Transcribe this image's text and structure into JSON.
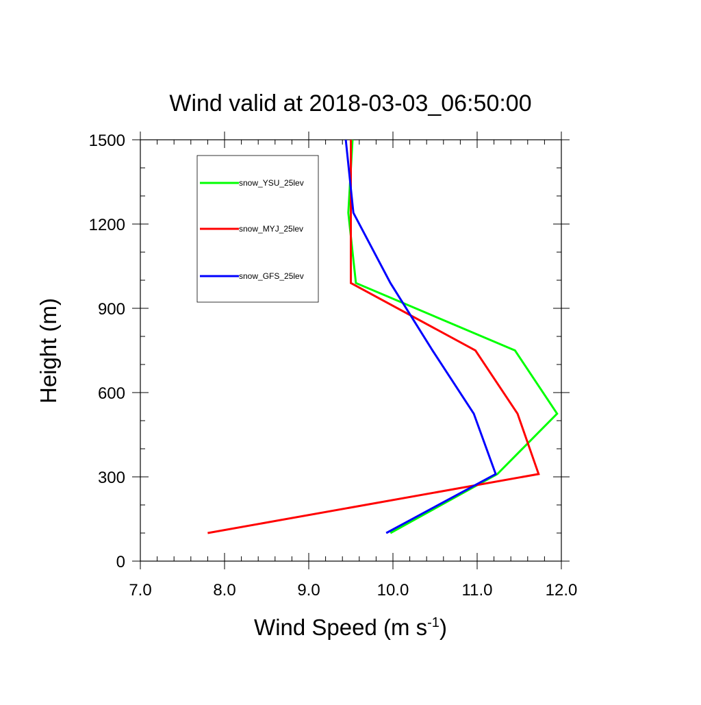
{
  "chart_data": {
    "type": "line",
    "title": "Wind valid at 2018-03-03_06:50:00",
    "xlabel": "Wind Speed (m s",
    "xlabel_superscript": "-1",
    "xlabel_suffix": ")",
    "ylabel": "Height (m)",
    "xlim": [
      7.0,
      12.0
    ],
    "ylim": [
      0,
      1500
    ],
    "x_ticks": [
      7.0,
      8.0,
      9.0,
      10.0,
      11.0,
      12.0
    ],
    "x_tick_labels": [
      "7.0",
      "8.0",
      "9.0",
      "10.0",
      "11.0",
      "12.0"
    ],
    "y_ticks": [
      0,
      300,
      600,
      900,
      1200,
      1500
    ],
    "y_tick_labels": [
      "0",
      "300",
      "600",
      "900",
      "1200",
      "1500"
    ],
    "grid": false,
    "legend_position": "top-left",
    "series": [
      {
        "name": "snow_YSU_25lev",
        "color": "#00ff00",
        "points": [
          [
            9.97,
            100
          ],
          [
            11.24,
            310
          ],
          [
            11.95,
            525
          ],
          [
            11.45,
            750
          ],
          [
            9.56,
            990
          ],
          [
            9.47,
            1240
          ],
          [
            9.52,
            1500
          ]
        ]
      },
      {
        "name": "snow_MYJ_25lev",
        "color": "#ff0000",
        "points": [
          [
            7.8,
            100
          ],
          [
            11.73,
            310
          ],
          [
            11.48,
            525
          ],
          [
            10.98,
            750
          ],
          [
            9.5,
            990
          ],
          [
            9.5,
            1240
          ],
          [
            9.5,
            1500
          ]
        ]
      },
      {
        "name": "snow_GFS_25lev",
        "color": "#0000ff",
        "points": [
          [
            9.92,
            100
          ],
          [
            11.22,
            310
          ],
          [
            10.96,
            525
          ],
          [
            10.47,
            750
          ],
          [
            9.97,
            990
          ],
          [
            9.53,
            1240
          ],
          [
            9.44,
            1500
          ]
        ]
      }
    ]
  }
}
